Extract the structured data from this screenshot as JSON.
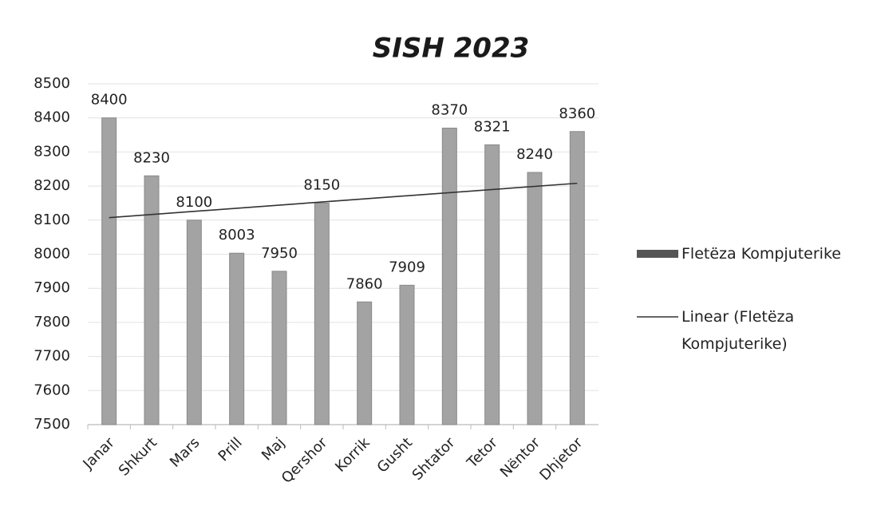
{
  "chart_data": {
    "type": "bar",
    "title": "SISH  2023",
    "categories": [
      "Janar",
      "Shkurt",
      "Mars",
      "Prill",
      "Maj",
      "Qershor",
      "Korrik",
      "Gusht",
      "Shtator",
      "Tetor",
      "Nëntor",
      "Dhjetor"
    ],
    "series": [
      {
        "name": "Fletëza Kompjuterike",
        "color": "#a3a3a3",
        "values": [
          8400,
          8230,
          8100,
          8003,
          7950,
          8150,
          7860,
          7909,
          8370,
          8321,
          8240,
          8360
        ]
      }
    ],
    "trendline": {
      "name": "Linear (Fletëza Kompjuterike)",
      "color": "#333333"
    },
    "ylim": [
      7500,
      8500
    ],
    "yticks": [
      7500,
      7600,
      7700,
      7800,
      7900,
      8000,
      8100,
      8200,
      8300,
      8400,
      8500
    ],
    "grid": true,
    "legend": "right"
  }
}
